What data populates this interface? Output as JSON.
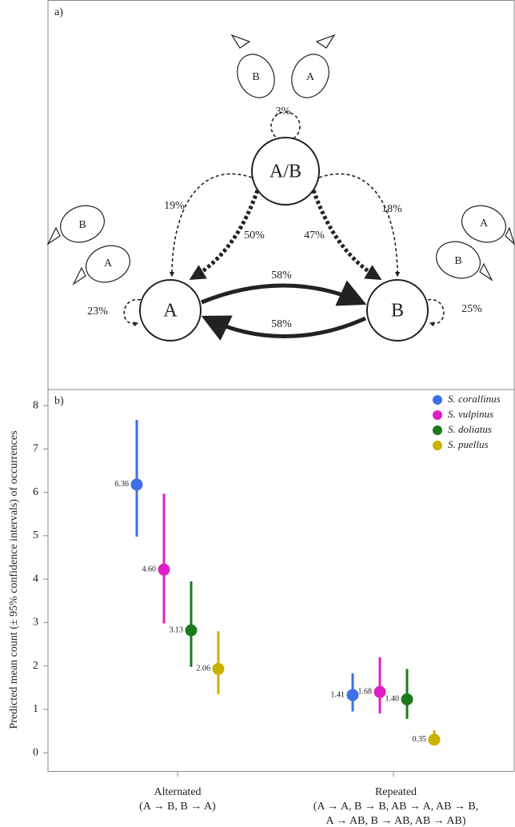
{
  "diagram": {
    "label": "a)",
    "nodes": [
      {
        "label": "A/B"
      },
      {
        "label": "A"
      },
      {
        "label": "B"
      }
    ],
    "edges": [
      {
        "label": "3%"
      },
      {
        "label": "19%"
      },
      {
        "label": "50%"
      },
      {
        "label": "47%"
      },
      {
        "label": "18%"
      },
      {
        "label": "58%"
      },
      {
        "label": "58%"
      },
      {
        "label": "23%"
      },
      {
        "label": "25%"
      }
    ],
    "fish": [
      "B",
      "A",
      "B",
      "A",
      "A",
      "B"
    ]
  },
  "chart_data": {
    "type": "errorbar",
    "panel_label": "b)",
    "y_label": "Predicted mean count (± 95% confidence intervals) of occurrences",
    "categories": [
      [
        "Alternated",
        "(A → B, B → A)"
      ],
      [
        "Repeated",
        "(A → A, B → B, AB → A, AB → B,",
        "A → AB, B → AB, AB → AB)"
      ]
    ],
    "ylim": [
      -0.44,
      8.37
    ],
    "yticks": [
      0,
      1,
      2,
      3,
      4,
      5,
      6,
      7,
      8
    ],
    "legend": "upper right",
    "series": [
      {
        "name": "S. corallinus",
        "color": "#3f6ee9",
        "values": [
          6.18,
          1.33
        ],
        "lower": [
          4.98,
          0.95
        ],
        "upper": [
          7.67,
          1.83
        ],
        "mean_labels": [
          "6.36",
          "1.41"
        ]
      },
      {
        "name": "S. vulpinus",
        "color": "#e11fc8",
        "values": [
          4.22,
          1.4
        ],
        "lower": [
          2.98,
          0.9
        ],
        "upper": [
          5.97,
          2.2
        ],
        "mean_labels": [
          "4.60",
          "1.68"
        ]
      },
      {
        "name": "S. doliatus",
        "color": "#1c7a1c",
        "values": [
          2.82,
          1.23
        ],
        "lower": [
          1.98,
          0.78
        ],
        "upper": [
          3.95,
          1.93
        ],
        "mean_labels": [
          "3.13",
          "1.40"
        ]
      },
      {
        "name": "S. puellus",
        "color": "#c9b100",
        "values": [
          1.93,
          0.3
        ],
        "lower": [
          1.35,
          0.22
        ],
        "upper": [
          2.8,
          0.52
        ],
        "mean_labels": [
          "2.06",
          "0.35"
        ]
      }
    ]
  }
}
